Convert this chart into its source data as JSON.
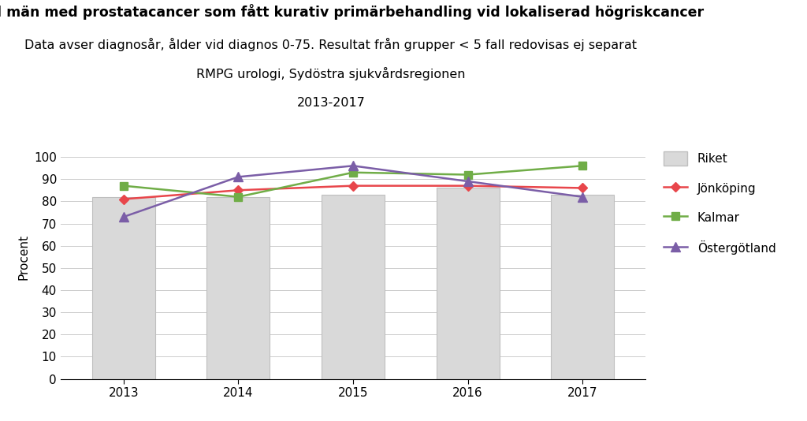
{
  "title_line1": "Andel män med prostatacancer som fått kurativ primärbehandling vid lokaliserad högriskcancer",
  "title_line2": "Data avser diagnosår, ålder vid diagnos 0-75. Resultat från grupper < 5 fall redovisas ej separat",
  "title_line3": "RMPG urologi, Sydöstra sjukvårdsregionen",
  "title_line4": "2013-2017",
  "ylabel": "Procent",
  "years": [
    2013,
    2014,
    2015,
    2016,
    2017
  ],
  "riket": [
    82,
    82,
    83,
    86,
    83
  ],
  "jonkoping": [
    81,
    85,
    87,
    87,
    86
  ],
  "kalmar": [
    87,
    82,
    93,
    92,
    96
  ],
  "ostergotland": [
    73,
    91,
    96,
    89,
    82
  ],
  "bar_color": "#d9d9d9",
  "bar_edgecolor": "#bfbfbf",
  "jonkoping_color": "#e8464b",
  "kalmar_color": "#70ad47",
  "ostergotland_color": "#7b5ea7",
  "ylim": [
    0,
    110
  ],
  "yticks": [
    0,
    10,
    20,
    30,
    40,
    50,
    60,
    70,
    80,
    90,
    100
  ],
  "title_fontsize": 12.5,
  "subtitle_fontsize": 11.5,
  "axis_label_fontsize": 11,
  "tick_fontsize": 11,
  "legend_fontsize": 11,
  "background_color": "#ffffff"
}
